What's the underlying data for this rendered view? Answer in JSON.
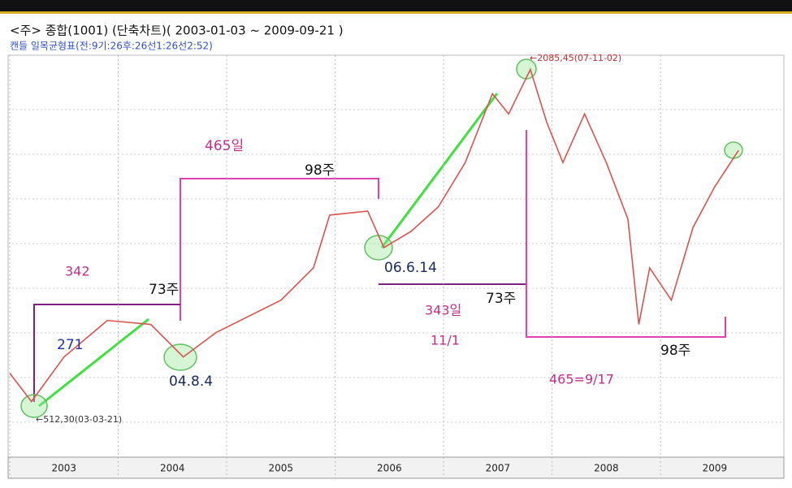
{
  "chart_data": {
    "type": "line",
    "title": "<주> 종합(1001) (단축차트)( 2003-01-03 ~ 2009-09-21 )",
    "subtitle": "캔들 일목균형표(전:9기:26후:26선1:26선2:52)",
    "x": [
      2003.0,
      2003.2,
      2003.5,
      2003.9,
      2004.3,
      2004.6,
      2004.9,
      2005.2,
      2005.5,
      2005.8,
      2005.95,
      2006.3,
      2006.45,
      2006.7,
      2006.95,
      2007.2,
      2007.45,
      2007.6,
      2007.8,
      2007.95,
      2008.1,
      2008.3,
      2008.5,
      2008.7,
      2008.8,
      2008.9,
      2009.1,
      2009.3,
      2009.5,
      2009.72
    ],
    "values": [
      646,
      512,
      723,
      896,
      877,
      723,
      838,
      915,
      992,
      1145,
      1395,
      1414,
      1241,
      1318,
      1433,
      1644,
      1970,
      1874,
      2085,
      1836,
      1644,
      1874,
      1644,
      1375,
      877,
      1145,
      992,
      1337,
      1529,
      1702
    ],
    "color": "#d9534f",
    "xlim": [
      2003,
      2010.1
    ],
    "xticks": [
      2003,
      2004,
      2005,
      2006,
      2007,
      2008,
      2009
    ],
    "ylim": [
      260,
      2260
    ],
    "annotations": [
      "←2085,45(07-11-02)",
      "←512,30(03-03-21)",
      "465일",
      "98주",
      "342",
      "73주",
      "271",
      "04.8.4",
      "06.6.14",
      "73주",
      "343일",
      "11/1",
      "465=9/17",
      "98주"
    ]
  }
}
